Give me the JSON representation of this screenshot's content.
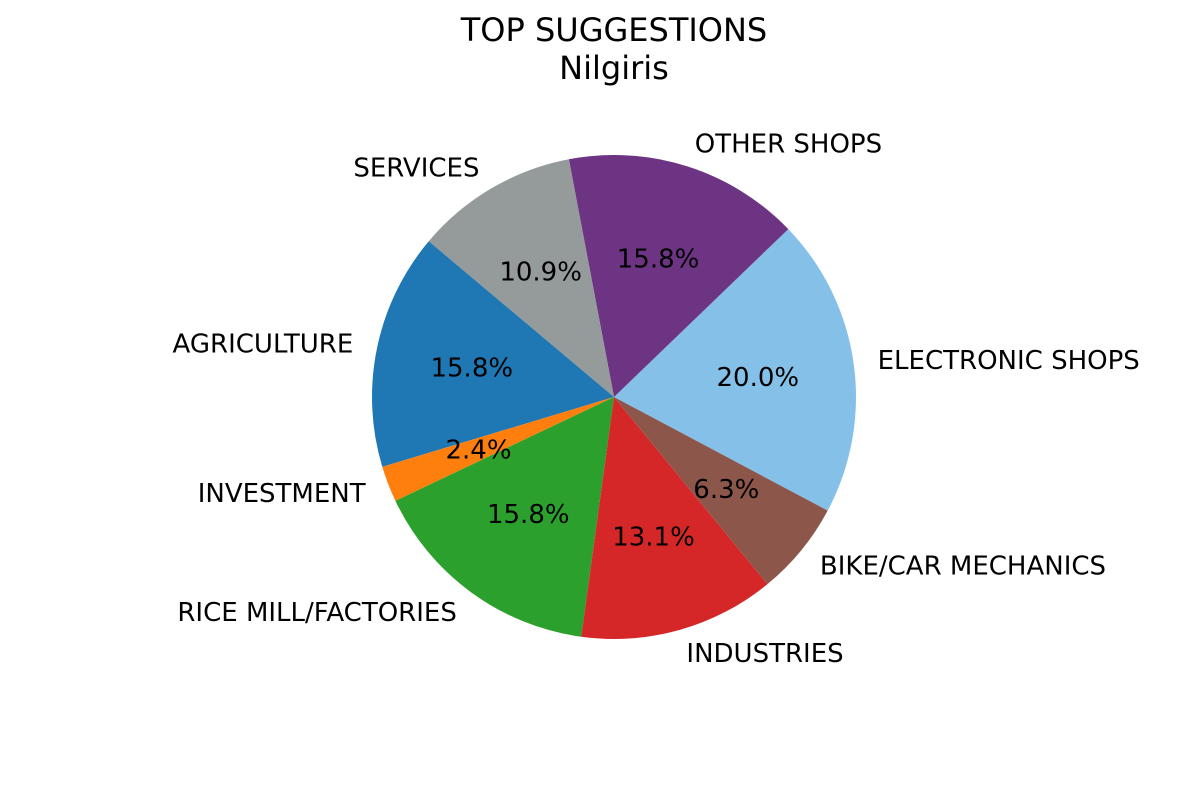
{
  "chart_data": {
    "type": "pie",
    "title": "TOP SUGGESTIONS",
    "subtitle": "Nilgiris",
    "slices": [
      {
        "label": "ELECTRONIC SHOPS",
        "value": 20.0,
        "pct_label": "20.0%",
        "color": "#85c0e8"
      },
      {
        "label": "OTHER SHOPS",
        "value": 15.8,
        "pct_label": "15.8%",
        "color": "#6c3483"
      },
      {
        "label": "SERVICES",
        "value": 10.9,
        "pct_label": "10.9%",
        "color": "#959a9b"
      },
      {
        "label": "AGRICULTURE",
        "value": 15.8,
        "pct_label": "15.8%",
        "color": "#1f77b4"
      },
      {
        "label": "INVESTMENT",
        "value": 2.4,
        "pct_label": "2.4%",
        "color": "#ff7f0e"
      },
      {
        "label": "RICE MILL/FACTORIES",
        "value": 15.8,
        "pct_label": "15.8%",
        "color": "#2ca02c"
      },
      {
        "label": "INDUSTRIES",
        "value": 13.1,
        "pct_label": "13.1%",
        "color": "#d62728"
      },
      {
        "label": "BIKE/CAR MECHANICS",
        "value": 6.3,
        "pct_label": "6.3%",
        "color": "#8c564b"
      }
    ]
  }
}
